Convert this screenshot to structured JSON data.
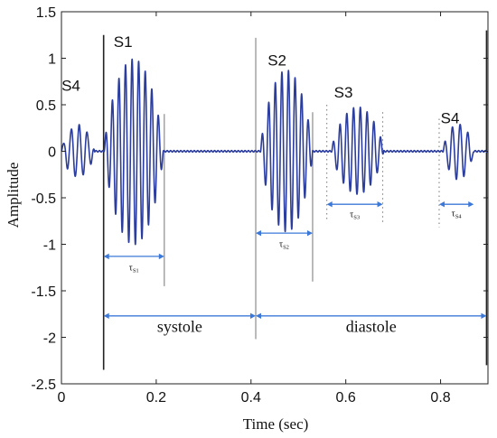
{
  "chart_data": {
    "type": "line",
    "xlabel": "Time (sec)",
    "ylabel": "Amplitude",
    "xlim": [
      0,
      0.9
    ],
    "ylim": [
      -2.5,
      1.5
    ],
    "x_ticks": [
      {
        "value": 0,
        "label": "0"
      },
      {
        "value": 0.2,
        "label": "0.2"
      },
      {
        "value": 0.4,
        "label": "0.4"
      },
      {
        "value": 0.6,
        "label": "0.6"
      },
      {
        "value": 0.8,
        "label": "0.8"
      }
    ],
    "y_ticks": [
      {
        "value": 1.5,
        "label": "1.5"
      },
      {
        "value": 1,
        "label": "1"
      },
      {
        "value": 0.5,
        "label": "0.5"
      },
      {
        "value": 0,
        "label": "0"
      },
      {
        "value": -0.5,
        "label": "-0.5"
      },
      {
        "value": -1,
        "label": "-1"
      },
      {
        "value": -1.5,
        "label": "-1.5"
      },
      {
        "value": -2,
        "label": "-2"
      },
      {
        "value": -2.5,
        "label": "-2.5"
      }
    ],
    "grid": false,
    "colors": {
      "signal": "#2b3d9e",
      "arrow": "#3c78d8",
      "marker_line": "#222222",
      "window_line": "#8c8c8c",
      "dotted_line": "#777777"
    },
    "bursts": [
      {
        "label": "S4",
        "start": 0.0,
        "end": 0.07,
        "amp": 0.28,
        "freq": 60,
        "label_x": 0.02,
        "label_y": 0.65
      },
      {
        "label": "S1",
        "start": 0.09,
        "end": 0.215,
        "amp": 1.0,
        "freq": 72,
        "label_x": 0.13,
        "label_y": 1.12
      },
      {
        "label": "S2",
        "start": 0.42,
        "end": 0.53,
        "amp": 0.87,
        "freq": 72,
        "label_x": 0.455,
        "label_y": 0.92
      },
      {
        "label": "S3",
        "start": 0.57,
        "end": 0.68,
        "amp": 0.47,
        "freq": 70,
        "label_x": 0.595,
        "label_y": 0.58
      },
      {
        "label": "S4",
        "start": 0.805,
        "end": 0.87,
        "amp": 0.3,
        "freq": 62,
        "label_x": 0.82,
        "label_y": 0.3
      }
    ],
    "marker_lines": [
      {
        "x": 0.089,
        "y1": 1.25,
        "y2": -2.35
      },
      {
        "x": 0.897,
        "y1": 1.3,
        "y2": -2.3
      }
    ],
    "window_lines": [
      {
        "x": 0.217,
        "y1": 0.4,
        "y2": -1.45
      },
      {
        "x": 0.41,
        "y1": 1.22,
        "y2": -2.02
      },
      {
        "x": 0.53,
        "y1": 0.42,
        "y2": -1.4
      }
    ],
    "dotted_lines": [
      {
        "x": 0.56,
        "y1": 0.5,
        "y2": -0.75
      },
      {
        "x": 0.678,
        "y1": 0.42,
        "y2": -0.78
      },
      {
        "x": 0.797,
        "y1": 0.35,
        "y2": -0.82
      }
    ],
    "interval_arrows": [
      {
        "label": "τS1",
        "x1": 0.089,
        "x2": 0.217,
        "y": -1.13,
        "text_y": -1.28,
        "size": "small"
      },
      {
        "label": "τS2",
        "x1": 0.41,
        "x2": 0.53,
        "y": -0.88,
        "text_y": -1.03,
        "size": "small"
      },
      {
        "label": "τS3",
        "x1": 0.56,
        "x2": 0.678,
        "y": -0.57,
        "text_y": -0.71,
        "size": "small"
      },
      {
        "label": "τS4",
        "x1": 0.797,
        "x2": 0.87,
        "y": -0.57,
        "text_y": -0.7,
        "size": "small"
      },
      {
        "label": "systole",
        "x1": 0.089,
        "x2": 0.41,
        "y": -1.77,
        "text_y": -1.94,
        "size": "large"
      },
      {
        "label": "diastole",
        "x1": 0.41,
        "x2": 0.897,
        "y": -1.77,
        "text_y": -1.94,
        "size": "large"
      }
    ]
  }
}
